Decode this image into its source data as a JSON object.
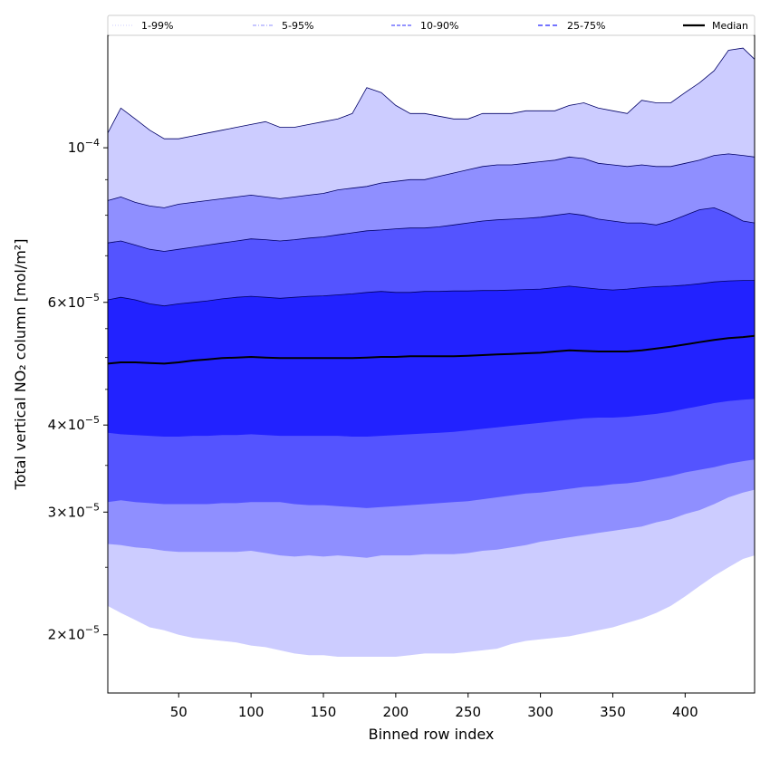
{
  "chart_data": {
    "type": "area",
    "xlabel": "Binned row index",
    "ylabel": "Total vertical NO₂ column [mol/m²]",
    "y_scale": "log",
    "xlim": [
      1,
      448
    ],
    "ylim": [
      1.65e-05,
      0.000145
    ],
    "x_ticks": [
      50,
      100,
      150,
      200,
      250,
      300,
      350,
      400
    ],
    "x_tick_labels": [
      "50",
      "100",
      "150",
      "200",
      "250",
      "300",
      "350",
      "400"
    ],
    "y_ticks": [
      {
        "value": 2e-05,
        "mantissa": "2",
        "times": "×",
        "base": "10",
        "exp": "−5"
      },
      {
        "value": 3e-05,
        "mantissa": "3",
        "times": "×",
        "base": "10",
        "exp": "−5"
      },
      {
        "value": 4e-05,
        "mantissa": "4",
        "times": "×",
        "base": "10",
        "exp": "−5"
      },
      {
        "value": 6e-05,
        "mantissa": "6",
        "times": "×",
        "base": "10",
        "exp": "−5"
      },
      {
        "value": 0.0001,
        "mantissa": "",
        "times": "",
        "base": "10",
        "exp": "−4"
      }
    ],
    "grid": false,
    "legend_position": "top",
    "x": [
      1,
      10,
      20,
      30,
      40,
      50,
      60,
      70,
      80,
      90,
      100,
      110,
      120,
      130,
      140,
      150,
      160,
      170,
      180,
      190,
      200,
      210,
      220,
      230,
      240,
      250,
      260,
      270,
      280,
      290,
      300,
      310,
      320,
      330,
      340,
      350,
      360,
      370,
      380,
      390,
      400,
      410,
      420,
      430,
      440,
      448
    ],
    "bands": [
      {
        "name": "1-99%",
        "fill": "#ccccff",
        "line_color": "#ccccff",
        "line_style": "dotted",
        "lower": [
          2.2e-05,
          2.15e-05,
          2.1e-05,
          2.05e-05,
          2.03e-05,
          2e-05,
          1.98e-05,
          1.97e-05,
          1.96e-05,
          1.95e-05,
          1.93e-05,
          1.92e-05,
          1.9e-05,
          1.88e-05,
          1.87e-05,
          1.87e-05,
          1.86e-05,
          1.86e-05,
          1.86e-05,
          1.86e-05,
          1.86e-05,
          1.87e-05,
          1.88e-05,
          1.88e-05,
          1.88e-05,
          1.89e-05,
          1.9e-05,
          1.91e-05,
          1.94e-05,
          1.96e-05,
          1.97e-05,
          1.98e-05,
          1.99e-05,
          2.01e-05,
          2.03e-05,
          2.05e-05,
          2.08e-05,
          2.11e-05,
          2.15e-05,
          2.2e-05,
          2.27e-05,
          2.35e-05,
          2.43e-05,
          2.5e-05,
          2.57e-05,
          2.6e-05
        ],
        "upper": [
          0.000105,
          0.000114,
          0.00011,
          0.000106,
          0.000103,
          0.000103,
          0.000104,
          0.000105,
          0.000106,
          0.000107,
          0.000108,
          0.000109,
          0.000107,
          0.000107,
          0.000108,
          0.000109,
          0.00011,
          0.000112,
          0.000122,
          0.00012,
          0.000115,
          0.000112,
          0.000112,
          0.000111,
          0.00011,
          0.00011,
          0.000112,
          0.000112,
          0.000112,
          0.000113,
          0.000113,
          0.000113,
          0.000115,
          0.000116,
          0.000114,
          0.000113,
          0.000112,
          0.000117,
          0.000116,
          0.000116,
          0.00012,
          0.000124,
          0.000129,
          0.000138,
          0.000139,
          0.000134
        ]
      },
      {
        "name": "5-95%",
        "fill": "#8f8fff",
        "line_color": "#8f8fff",
        "line_style": "dashdot",
        "lower": [
          2.7e-05,
          2.69e-05,
          2.67e-05,
          2.66e-05,
          2.64e-05,
          2.63e-05,
          2.63e-05,
          2.63e-05,
          2.63e-05,
          2.63e-05,
          2.64e-05,
          2.62e-05,
          2.6e-05,
          2.59e-05,
          2.6e-05,
          2.59e-05,
          2.6e-05,
          2.59e-05,
          2.58e-05,
          2.6e-05,
          2.6e-05,
          2.6e-05,
          2.61e-05,
          2.61e-05,
          2.61e-05,
          2.62e-05,
          2.64e-05,
          2.65e-05,
          2.67e-05,
          2.69e-05,
          2.72e-05,
          2.74e-05,
          2.76e-05,
          2.78e-05,
          2.8e-05,
          2.82e-05,
          2.84e-05,
          2.86e-05,
          2.9e-05,
          2.93e-05,
          2.98e-05,
          3.02e-05,
          3.08e-05,
          3.15e-05,
          3.2e-05,
          3.23e-05
        ],
        "upper": [
          8.4e-05,
          8.5e-05,
          8.35e-05,
          8.25e-05,
          8.2e-05,
          8.3e-05,
          8.35e-05,
          8.4e-05,
          8.45e-05,
          8.5e-05,
          8.55e-05,
          8.5e-05,
          8.45e-05,
          8.5e-05,
          8.55e-05,
          8.6e-05,
          8.7e-05,
          8.75e-05,
          8.8e-05,
          8.9e-05,
          8.95e-05,
          9e-05,
          9e-05,
          9.1e-05,
          9.2e-05,
          9.3e-05,
          9.4e-05,
          9.45e-05,
          9.45e-05,
          9.5e-05,
          9.55e-05,
          9.6e-05,
          9.7e-05,
          9.65e-05,
          9.5e-05,
          9.45e-05,
          9.4e-05,
          9.45e-05,
          9.4e-05,
          9.4e-05,
          9.5e-05,
          9.6e-05,
          9.75e-05,
          9.8e-05,
          9.75e-05,
          9.7e-05
        ]
      },
      {
        "name": "10-90%",
        "fill": "#5454ff",
        "line_color": "#5454ff",
        "line_style": "dashed",
        "lower": [
          3.1e-05,
          3.12e-05,
          3.1e-05,
          3.09e-05,
          3.08e-05,
          3.08e-05,
          3.08e-05,
          3.08e-05,
          3.09e-05,
          3.09e-05,
          3.1e-05,
          3.1e-05,
          3.1e-05,
          3.08e-05,
          3.07e-05,
          3.07e-05,
          3.06e-05,
          3.05e-05,
          3.04e-05,
          3.05e-05,
          3.06e-05,
          3.07e-05,
          3.08e-05,
          3.09e-05,
          3.1e-05,
          3.11e-05,
          3.13e-05,
          3.15e-05,
          3.17e-05,
          3.19e-05,
          3.2e-05,
          3.22e-05,
          3.24e-05,
          3.26e-05,
          3.27e-05,
          3.29e-05,
          3.3e-05,
          3.32e-05,
          3.35e-05,
          3.38e-05,
          3.42e-05,
          3.45e-05,
          3.48e-05,
          3.52e-05,
          3.55e-05,
          3.57e-05
        ],
        "upper": [
          7.3e-05,
          7.35e-05,
          7.25e-05,
          7.15e-05,
          7.1e-05,
          7.15e-05,
          7.2e-05,
          7.25e-05,
          7.3e-05,
          7.35e-05,
          7.4e-05,
          7.38e-05,
          7.35e-05,
          7.38e-05,
          7.42e-05,
          7.45e-05,
          7.5e-05,
          7.55e-05,
          7.6e-05,
          7.62e-05,
          7.65e-05,
          7.67e-05,
          7.67e-05,
          7.7e-05,
          7.75e-05,
          7.8e-05,
          7.85e-05,
          7.88e-05,
          7.9e-05,
          7.92e-05,
          7.95e-05,
          8e-05,
          8.05e-05,
          8e-05,
          7.9e-05,
          7.85e-05,
          7.8e-05,
          7.8e-05,
          7.75e-05,
          7.85e-05,
          8e-05,
          8.15e-05,
          8.2e-05,
          8.05e-05,
          7.85e-05,
          7.8e-05
        ]
      },
      {
        "name": "25-75%",
        "fill": "#2222ff",
        "line_color": "#2222ff",
        "line_style": "dashed",
        "lower": [
          3.9e-05,
          3.88e-05,
          3.87e-05,
          3.86e-05,
          3.85e-05,
          3.85e-05,
          3.86e-05,
          3.86e-05,
          3.87e-05,
          3.87e-05,
          3.88e-05,
          3.87e-05,
          3.86e-05,
          3.86e-05,
          3.86e-05,
          3.86e-05,
          3.86e-05,
          3.85e-05,
          3.85e-05,
          3.86e-05,
          3.87e-05,
          3.88e-05,
          3.89e-05,
          3.9e-05,
          3.91e-05,
          3.93e-05,
          3.95e-05,
          3.97e-05,
          3.99e-05,
          4.01e-05,
          4.03e-05,
          4.05e-05,
          4.07e-05,
          4.09e-05,
          4.1e-05,
          4.1e-05,
          4.11e-05,
          4.13e-05,
          4.15e-05,
          4.18e-05,
          4.22e-05,
          4.26e-05,
          4.3e-05,
          4.33e-05,
          4.35e-05,
          4.36e-05
        ],
        "upper": [
          6.05e-05,
          6.1e-05,
          6.05e-05,
          5.97e-05,
          5.93e-05,
          5.97e-05,
          6e-05,
          6.03e-05,
          6.07e-05,
          6.1e-05,
          6.12e-05,
          6.1e-05,
          6.08e-05,
          6.1e-05,
          6.12e-05,
          6.13e-05,
          6.15e-05,
          6.17e-05,
          6.2e-05,
          6.22e-05,
          6.2e-05,
          6.2e-05,
          6.22e-05,
          6.22e-05,
          6.23e-05,
          6.23e-05,
          6.24e-05,
          6.24e-05,
          6.25e-05,
          6.26e-05,
          6.27e-05,
          6.3e-05,
          6.33e-05,
          6.3e-05,
          6.27e-05,
          6.25e-05,
          6.27e-05,
          6.3e-05,
          6.32e-05,
          6.33e-05,
          6.35e-05,
          6.38e-05,
          6.42e-05,
          6.44e-05,
          6.45e-05,
          6.45e-05
        ]
      }
    ],
    "median": {
      "name": "Median",
      "color": "#000000",
      "line_style": "solid",
      "values": [
        4.9e-05,
        4.92e-05,
        4.92e-05,
        4.91e-05,
        4.9e-05,
        4.92e-05,
        4.95e-05,
        4.97e-05,
        4.99e-05,
        5e-05,
        5.01e-05,
        5e-05,
        4.99e-05,
        4.99e-05,
        4.99e-05,
        4.99e-05,
        4.99e-05,
        4.99e-05,
        5e-05,
        5.01e-05,
        5.01e-05,
        5.02e-05,
        5.02e-05,
        5.02e-05,
        5.02e-05,
        5.03e-05,
        5.04e-05,
        5.05e-05,
        5.06e-05,
        5.07e-05,
        5.08e-05,
        5.1e-05,
        5.12e-05,
        5.11e-05,
        5.1e-05,
        5.1e-05,
        5.1e-05,
        5.12e-05,
        5.15e-05,
        5.18e-05,
        5.22e-05,
        5.26e-05,
        5.3e-05,
        5.33e-05,
        5.35e-05,
        5.37e-05
      ]
    },
    "legend": [
      {
        "label": "1-99%",
        "color": "#ccccff",
        "dash": "1,2",
        "width": 1
      },
      {
        "label": "5-95%",
        "color": "#8f8fff",
        "dash": "4,2,1,2",
        "width": 1
      },
      {
        "label": "10-90%",
        "color": "#5454ff",
        "dash": "4,2",
        "width": 1.2
      },
      {
        "label": "25-75%",
        "color": "#2222ff",
        "dash": "5,3",
        "width": 1.3
      },
      {
        "label": "Median",
        "color": "#000000",
        "dash": "",
        "width": 2.2
      }
    ]
  }
}
